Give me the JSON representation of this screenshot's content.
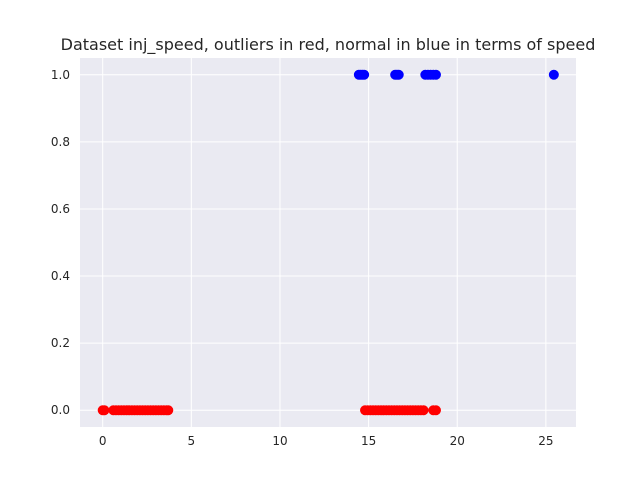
{
  "chart_data": {
    "type": "scatter",
    "title": "Dataset inj_speed, outliers in red, normal in blue in terms of speed",
    "xlabel": "",
    "ylabel": "",
    "xlim": [
      -1.28,
      26.7
    ],
    "ylim": [
      -0.05,
      1.05
    ],
    "x_ticks": [
      0,
      5,
      10,
      15,
      20,
      25
    ],
    "x_tick_labels": [
      "0",
      "5",
      "10",
      "15",
      "20",
      "25"
    ],
    "y_ticks": [
      0.0,
      0.2,
      0.4,
      0.6,
      0.8,
      1.0
    ],
    "y_tick_labels": [
      "0.0",
      "0.2",
      "0.4",
      "0.6",
      "0.8",
      "1.0"
    ],
    "grid": true,
    "background_color": "#eaeaf2",
    "grid_color": "#ffffff",
    "series": [
      {
        "color": "#ff0000",
        "points": [
          [
            0.0,
            0
          ],
          [
            0.1,
            0
          ],
          [
            0.6,
            0
          ],
          [
            0.75,
            0
          ],
          [
            0.9,
            0
          ],
          [
            1.05,
            0
          ],
          [
            1.2,
            0
          ],
          [
            1.35,
            0
          ],
          [
            1.5,
            0
          ],
          [
            1.65,
            0
          ],
          [
            1.8,
            0
          ],
          [
            1.95,
            0
          ],
          [
            2.1,
            0
          ],
          [
            2.25,
            0
          ],
          [
            2.4,
            0
          ],
          [
            2.55,
            0
          ],
          [
            2.7,
            0
          ],
          [
            2.85,
            0
          ],
          [
            3.0,
            0
          ],
          [
            3.15,
            0
          ],
          [
            3.3,
            0
          ],
          [
            3.45,
            0
          ],
          [
            3.6,
            0
          ],
          [
            3.7,
            0
          ],
          [
            14.8,
            0
          ],
          [
            14.95,
            0
          ],
          [
            15.1,
            0
          ],
          [
            15.25,
            0
          ],
          [
            15.4,
            0
          ],
          [
            15.55,
            0
          ],
          [
            15.7,
            0
          ],
          [
            15.85,
            0
          ],
          [
            16.0,
            0
          ],
          [
            16.15,
            0
          ],
          [
            16.3,
            0
          ],
          [
            16.45,
            0
          ],
          [
            16.6,
            0
          ],
          [
            16.75,
            0
          ],
          [
            16.9,
            0
          ],
          [
            17.05,
            0
          ],
          [
            17.2,
            0
          ],
          [
            17.35,
            0
          ],
          [
            17.5,
            0
          ],
          [
            17.65,
            0
          ],
          [
            17.8,
            0
          ],
          [
            17.95,
            0
          ],
          [
            18.1,
            0
          ],
          [
            18.65,
            0
          ],
          [
            18.8,
            0
          ]
        ]
      },
      {
        "color": "#0000ff",
        "points": [
          [
            14.45,
            1
          ],
          [
            14.55,
            1
          ],
          [
            14.65,
            1
          ],
          [
            14.75,
            1
          ],
          [
            16.5,
            1
          ],
          [
            16.6,
            1
          ],
          [
            16.7,
            1
          ],
          [
            18.2,
            1
          ],
          [
            18.35,
            1
          ],
          [
            18.5,
            1
          ],
          [
            18.65,
            1
          ],
          [
            18.8,
            1
          ],
          [
            25.45,
            1
          ]
        ]
      }
    ]
  }
}
